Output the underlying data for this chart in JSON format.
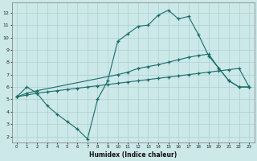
{
  "xlabel": "Humidex (Indice chaleur)",
  "bg_color": "#cce8e8",
  "line_color": "#1a6b6b",
  "grid_color": "#aad0d0",
  "xlim": [
    -0.5,
    23.5
  ],
  "ylim": [
    1.5,
    12.8
  ],
  "xticks": [
    0,
    1,
    2,
    3,
    4,
    5,
    6,
    7,
    8,
    9,
    10,
    11,
    12,
    13,
    14,
    15,
    16,
    17,
    18,
    19,
    20,
    21,
    22,
    23
  ],
  "yticks": [
    2,
    3,
    4,
    5,
    6,
    7,
    8,
    9,
    10,
    11,
    12
  ],
  "line1_x": [
    0,
    1,
    2,
    3,
    4,
    5,
    6,
    7,
    8,
    9,
    10,
    11,
    12,
    13,
    14,
    15,
    16,
    17,
    18,
    19,
    20,
    21,
    22,
    23
  ],
  "line1_y": [
    5.2,
    6.0,
    5.5,
    4.5,
    3.8,
    3.2,
    2.6,
    1.8,
    5.0,
    6.5,
    9.7,
    10.3,
    10.9,
    11.0,
    11.8,
    12.2,
    11.5,
    11.7,
    10.2,
    8.5,
    7.5,
    6.5,
    6.0,
    6.0
  ],
  "line2_x": [
    0,
    1,
    2,
    10,
    11,
    12,
    13,
    14,
    15,
    16,
    17,
    18,
    19,
    20,
    21,
    22,
    23
  ],
  "line2_y": [
    5.2,
    5.5,
    5.7,
    7.0,
    7.2,
    7.5,
    7.65,
    7.8,
    8.0,
    8.2,
    8.4,
    8.55,
    8.65,
    7.5,
    6.5,
    6.0,
    6.0
  ],
  "line3_x": [
    0,
    1,
    2,
    3,
    4,
    5,
    6,
    7,
    8,
    9,
    10,
    11,
    12,
    13,
    14,
    15,
    16,
    17,
    18,
    19,
    20,
    21,
    22,
    23
  ],
  "line3_y": [
    5.2,
    5.35,
    5.5,
    5.6,
    5.7,
    5.8,
    5.9,
    6.0,
    6.1,
    6.2,
    6.3,
    6.4,
    6.5,
    6.6,
    6.7,
    6.8,
    6.9,
    7.0,
    7.1,
    7.2,
    7.3,
    7.4,
    7.5,
    6.0
  ]
}
